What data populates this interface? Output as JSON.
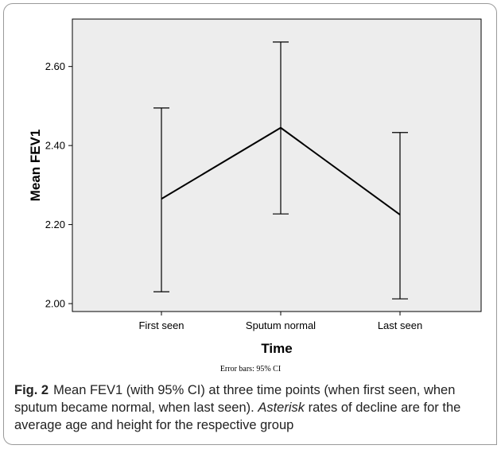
{
  "chart_data": {
    "type": "line",
    "categories": [
      "First seen",
      "Sputum normal",
      "Last seen"
    ],
    "series": [
      {
        "values": [
          2.265,
          2.445,
          2.225
        ],
        "ci_lower": [
          2.03,
          2.227,
          2.012
        ],
        "ci_upper": [
          2.495,
          2.662,
          2.433
        ]
      }
    ],
    "ylabel": "Mean FEV1",
    "xlabel": "Time",
    "ylim": [
      1.98,
      2.72
    ],
    "yticks": [
      "2.00",
      "2.20",
      "2.40",
      "2.60"
    ],
    "note": "Error bars: 95% CI",
    "grid": false
  },
  "caption": {
    "fig_label": "Fig. 2",
    "text_part1": "Mean FEV1 (with 95% CI) at three time points (when first seen, when sputum became normal, when last seen). ",
    "italic_word": "Asterisk",
    "text_part2": " rates of decline are for the average age and height for the respective group"
  },
  "colors": {
    "plot_background": "#ededed",
    "line": "#000000"
  }
}
